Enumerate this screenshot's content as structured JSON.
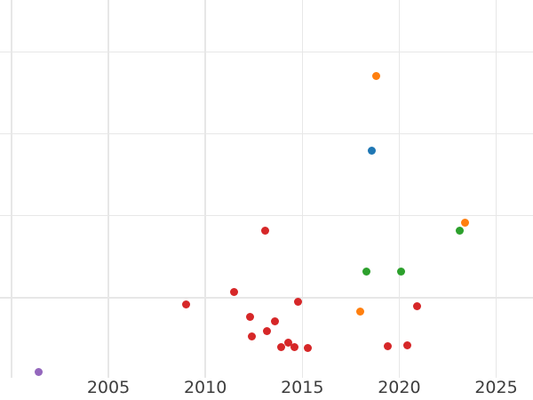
{
  "chart_data": {
    "type": "scatter",
    "title": "",
    "xlabel": "",
    "ylabel": "",
    "legend_position": "none",
    "grid": true,
    "background_color": "#ffffff",
    "gridline_color": "#e7e7e7",
    "tick_label_color": "#3d3d3d",
    "x_ticks": [
      "2005",
      "2010",
      "2015",
      "2020",
      "2025"
    ],
    "x_tick_years": [
      2005,
      2010,
      2015,
      2020,
      2025
    ],
    "x_gridline_years": [
      2000,
      2005,
      2010,
      2015,
      2020,
      2025
    ],
    "x_range": [
      1999.41,
      2026.9
    ],
    "y_range": [
      0.01,
      4.635
    ],
    "y_gridline_values": [
      1,
      2,
      3,
      4
    ],
    "y_tick_labels_visible": false,
    "estimation_note": "y-axis has no visible labels; values are in gridline units estimated from the unlabeled grid (one unit per gridline, baseline 0 just below plot bottom)",
    "marker_diameter_px": 9,
    "series": [
      {
        "name": "red",
        "color": "#d62728",
        "points": [
          [
            2009.0,
            0.92
          ],
          [
            2011.5,
            1.07
          ],
          [
            2012.3,
            0.76
          ],
          [
            2012.4,
            0.53
          ],
          [
            2013.1,
            1.82
          ],
          [
            2013.2,
            0.59
          ],
          [
            2013.6,
            0.71
          ],
          [
            2013.9,
            0.4
          ],
          [
            2014.3,
            0.45
          ],
          [
            2014.6,
            0.39
          ],
          [
            2014.8,
            0.95
          ],
          [
            2015.3,
            0.38
          ],
          [
            2019.4,
            0.41
          ],
          [
            2020.4,
            0.42
          ],
          [
            2020.9,
            0.89
          ]
        ]
      },
      {
        "name": "orange",
        "color": "#ff7f0e",
        "points": [
          [
            2018.0,
            0.83
          ],
          [
            2018.8,
            3.71
          ],
          [
            2023.4,
            1.92
          ]
        ]
      },
      {
        "name": "green",
        "color": "#2ca02c",
        "points": [
          [
            2018.3,
            1.32
          ],
          [
            2020.1,
            1.32
          ],
          [
            2023.1,
            1.82
          ]
        ]
      },
      {
        "name": "blue",
        "color": "#1f77b4",
        "points": [
          [
            2018.6,
            2.8
          ]
        ]
      },
      {
        "name": "purple",
        "color": "#9467bd",
        "points": [
          [
            2001.4,
            0.09
          ]
        ]
      }
    ]
  }
}
